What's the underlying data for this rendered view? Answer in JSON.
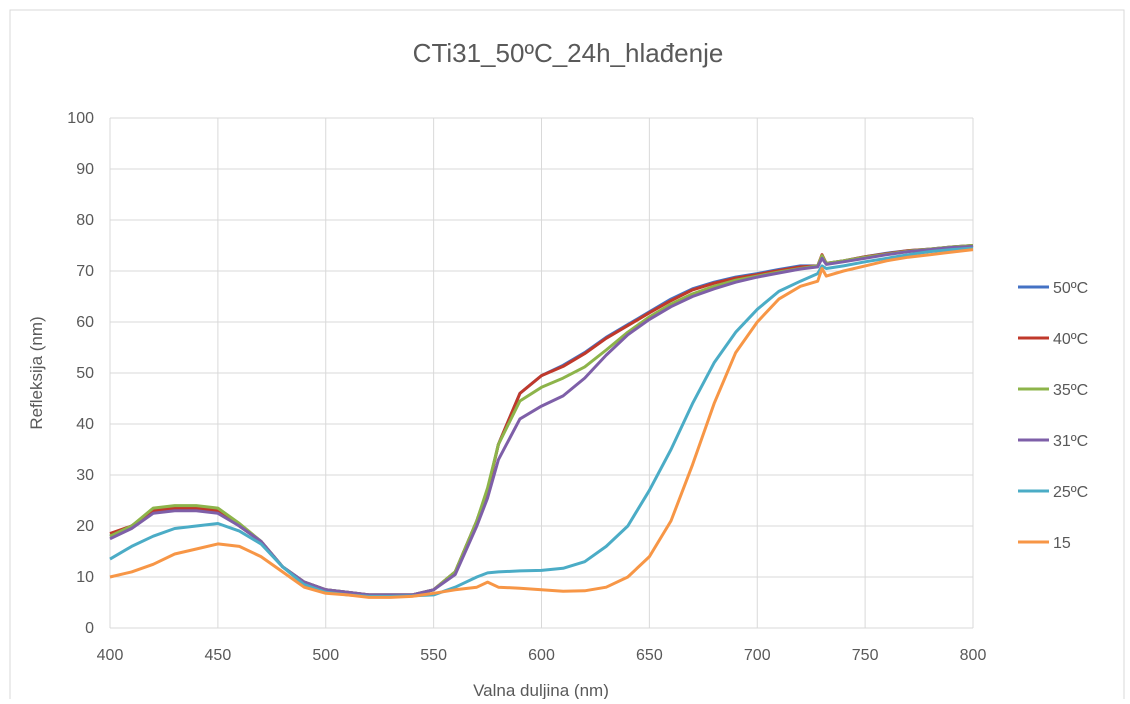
{
  "chart_data": {
    "type": "line",
    "title": "CTi31_50ºC_24h_hlađenje",
    "xlabel": "Valna duljina (nm)",
    "ylabel": "Refleksija (nm)",
    "xlim": [
      400,
      800
    ],
    "ylim": [
      0,
      100
    ],
    "x_ticks": [
      "400",
      "450",
      "500",
      "550",
      "600",
      "650",
      "700",
      "750",
      "800"
    ],
    "y_ticks": [
      "0",
      "10",
      "20",
      "30",
      "40",
      "50",
      "60",
      "70",
      "80",
      "90",
      "100"
    ],
    "grid": true,
    "legend_position": "right",
    "x": [
      400,
      410,
      420,
      430,
      440,
      450,
      460,
      470,
      480,
      490,
      500,
      510,
      520,
      530,
      540,
      550,
      560,
      570,
      575,
      580,
      590,
      600,
      610,
      620,
      630,
      640,
      650,
      660,
      670,
      680,
      690,
      700,
      710,
      720,
      728,
      730,
      732,
      740,
      750,
      760,
      770,
      780,
      790,
      800
    ],
    "series": [
      {
        "name": "50ºC",
        "color": "#4472c4",
        "values": [
          18,
          20,
          23,
          23.5,
          23.5,
          23,
          20,
          17,
          12,
          9,
          7.5,
          7,
          6.5,
          6.5,
          6.5,
          7.5,
          11,
          21,
          27,
          36,
          46,
          49.5,
          51.5,
          54,
          57,
          59.5,
          62,
          64.5,
          66.5,
          67.8,
          68.8,
          69.5,
          70.3,
          71,
          71,
          73,
          71.5,
          72,
          72.8,
          73.5,
          74,
          74.3,
          74.7,
          75
        ]
      },
      {
        "name": "40ºC",
        "color": "#c0392b",
        "values": [
          18.5,
          20,
          23,
          23.5,
          23.5,
          23,
          20,
          17,
          12,
          9,
          7.5,
          7,
          6.5,
          6.5,
          6.5,
          7.5,
          11,
          21,
          27,
          36,
          46,
          49.5,
          51.3,
          53.8,
          56.8,
          59.3,
          61.8,
          64.2,
          66.3,
          67.6,
          68.6,
          69.3,
          70.1,
          70.8,
          71,
          73.2,
          71.5,
          72,
          72.8,
          73.4,
          74,
          74.3,
          74.7,
          75
        ]
      },
      {
        "name": "35ºC",
        "color": "#8db44a",
        "values": [
          18,
          20,
          23.5,
          24,
          24,
          23.5,
          20.5,
          17,
          12,
          9,
          7.5,
          7,
          6.5,
          6.5,
          6.5,
          7.5,
          11,
          21,
          27.5,
          36,
          44.5,
          47.2,
          49,
          51.2,
          54.5,
          58,
          61,
          63.5,
          65.5,
          67,
          68.2,
          69,
          69.8,
          70.5,
          71,
          73,
          71.5,
          72,
          72.7,
          73.3,
          73.9,
          74.3,
          74.7,
          75
        ]
      },
      {
        "name": "31ºC",
        "color": "#7e5fa8",
        "values": [
          17.5,
          19.5,
          22.5,
          23,
          23,
          22.5,
          20,
          17,
          12,
          9,
          7.5,
          7,
          6.5,
          6.5,
          6.5,
          7.5,
          10.5,
          20,
          25.5,
          33,
          41,
          43.5,
          45.5,
          49,
          53.5,
          57.5,
          60.5,
          63,
          65,
          66.5,
          67.8,
          68.8,
          69.6,
          70.4,
          70.8,
          72.5,
          71.3,
          71.8,
          72.5,
          73.2,
          73.8,
          74.2,
          74.6,
          74.8
        ]
      },
      {
        "name": "25ºC",
        "color": "#4bacc6",
        "values": [
          13.5,
          16,
          18,
          19.5,
          20,
          20.5,
          19,
          16.5,
          12,
          8.5,
          7,
          6.5,
          6.2,
          6.2,
          6.3,
          6.5,
          8,
          10,
          10.8,
          11,
          11.2,
          11.3,
          11.7,
          13,
          16,
          20,
          27,
          35,
          44,
          52,
          58,
          62.5,
          66,
          68,
          69.5,
          71,
          70.5,
          71,
          71.8,
          72.5,
          73.2,
          73.8,
          74.2,
          74.5
        ]
      },
      {
        "name": "15",
        "color": "#f79646",
        "values": [
          10,
          11,
          12.5,
          14.5,
          15.5,
          16.5,
          16,
          14,
          11,
          8,
          6.8,
          6.5,
          6,
          6,
          6.2,
          6.8,
          7.5,
          8,
          9,
          8,
          7.8,
          7.5,
          7.2,
          7.3,
          8,
          10,
          14,
          21,
          32,
          44,
          54,
          60,
          64.5,
          67,
          68,
          70.5,
          69,
          70,
          71,
          72,
          72.7,
          73.2,
          73.7,
          74.2
        ]
      }
    ]
  }
}
